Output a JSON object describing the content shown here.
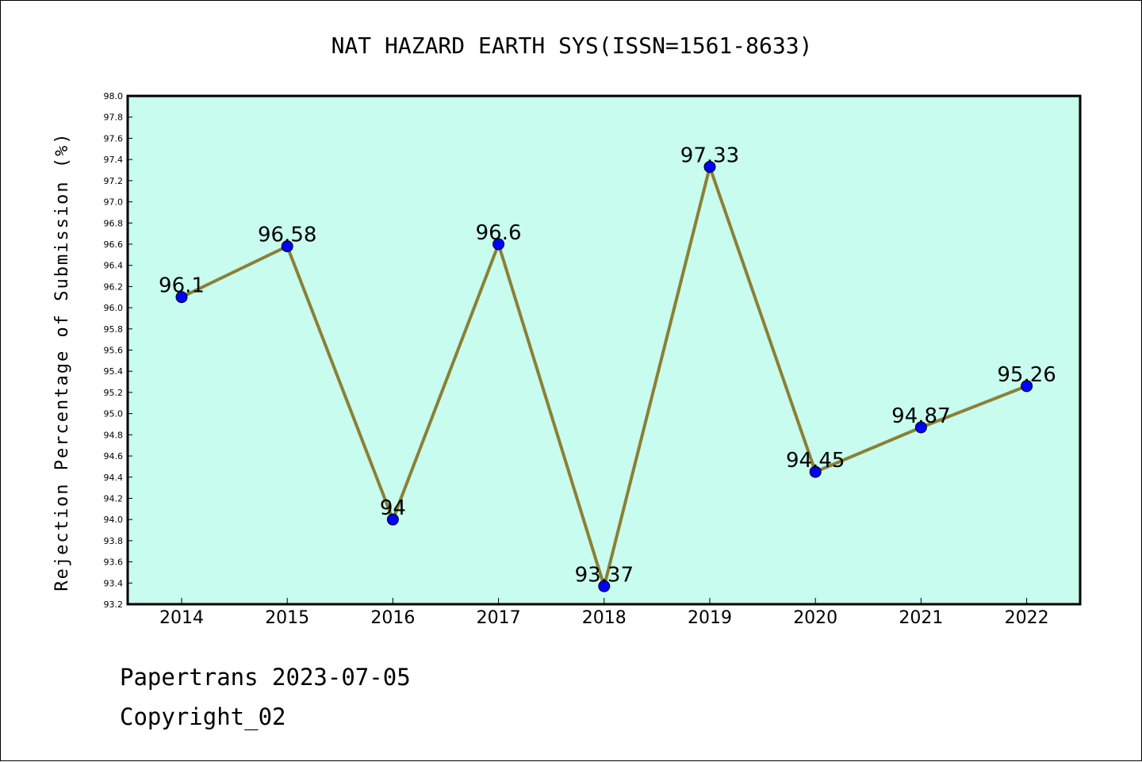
{
  "footer": {
    "line1": "Papertrans 2023-07-05",
    "line2": "Copyright_02"
  },
  "chart_data": {
    "type": "line",
    "title": "NAT HAZARD EARTH SYS(ISSN=1561-8633)",
    "xlabel": "",
    "ylabel": "Rejection Percentage of Submission (%)",
    "categories": [
      "2014",
      "2015",
      "2016",
      "2017",
      "2018",
      "2019",
      "2020",
      "2021",
      "2022"
    ],
    "series": [
      {
        "values": [
          96.1,
          96.58,
          94,
          96.6,
          93.37,
          97.33,
          94.45,
          94.87,
          95.26
        ],
        "labels": [
          "96.1",
          "96.58",
          "94",
          "96.6",
          "93.37",
          "97.33",
          "94.45",
          "94.87",
          "95.26"
        ]
      }
    ],
    "ylim": [
      93.2,
      98.0
    ],
    "ytick_step": 0.2,
    "grid": false,
    "colors": {
      "plot_bg": "#c8fcee",
      "line": "#8b8035",
      "marker": "#0000ff"
    }
  }
}
